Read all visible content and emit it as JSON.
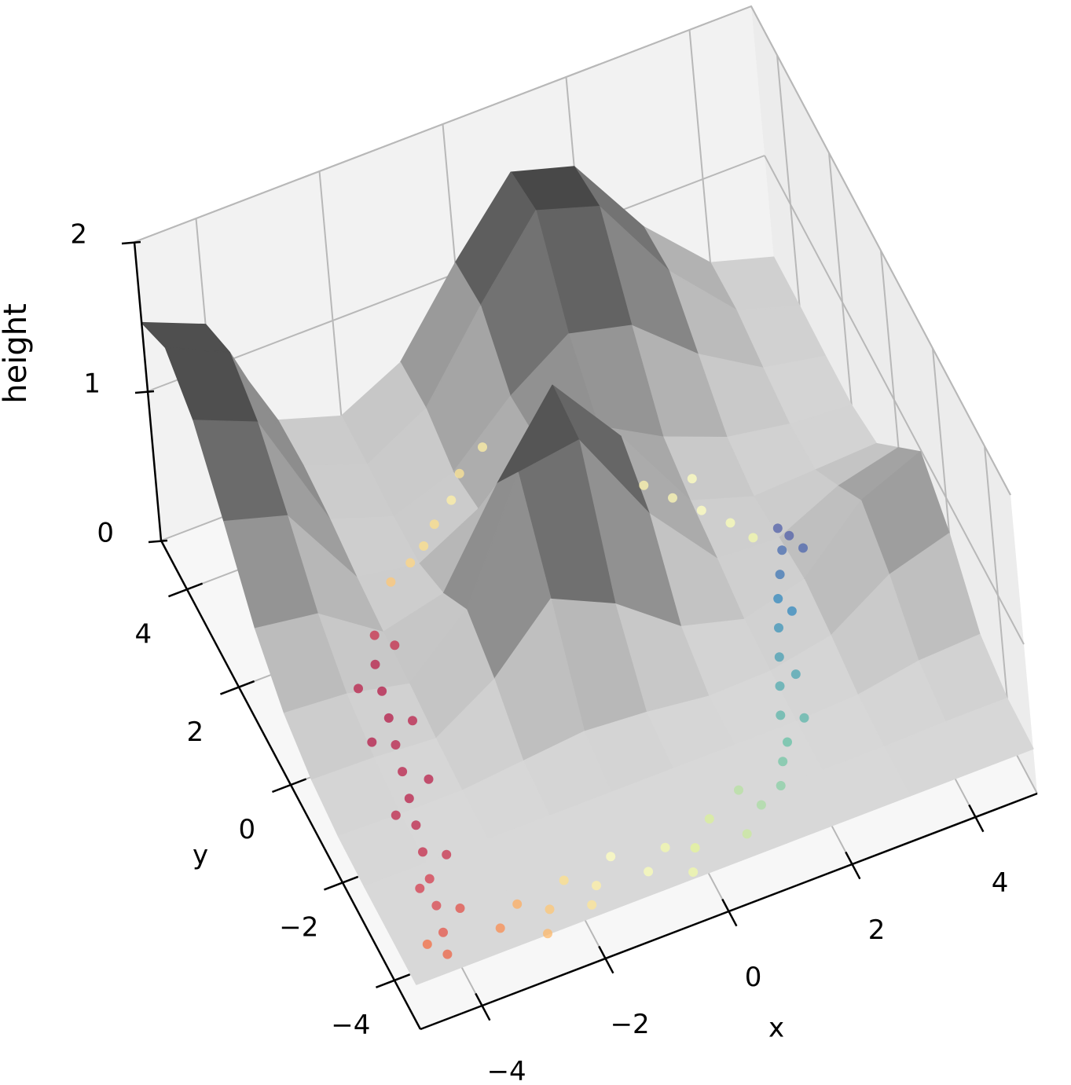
{
  "chart_data": {
    "type": "surface3d",
    "xlabel": "x",
    "ylabel": "y",
    "zlabel": "height",
    "xlim": [
      -5,
      5
    ],
    "ylim": [
      -5,
      5
    ],
    "zlim": [
      0,
      2
    ],
    "xticks": [
      {
        "value": -4,
        "label": "−4"
      },
      {
        "value": -2,
        "label": "−2"
      },
      0,
      2,
      4
    ],
    "yticks": [
      {
        "value": -4,
        "label": "−4"
      },
      {
        "value": -2,
        "label": "−2"
      },
      0,
      2,
      4
    ],
    "zticks": [
      0,
      1,
      2
    ],
    "grid": true,
    "surface": {
      "colormap": "Greys",
      "x": [
        -5,
        -4,
        -3,
        -2,
        -1,
        0,
        1,
        2,
        3,
        4,
        5
      ],
      "y": [
        -5,
        -4,
        -3,
        -2,
        -1,
        0,
        1,
        2,
        3,
        4,
        5
      ],
      "z": [
        [
          0.3,
          0.3,
          0.3,
          0.3,
          0.3,
          0.3,
          0.3,
          0.3,
          0.3,
          0.3,
          0.3
        ],
        [
          0.3,
          0.3,
          0.3,
          0.3,
          0.3,
          0.3,
          0.3,
          0.3,
          0.3,
          0.31,
          0.31
        ],
        [
          0.3,
          0.3,
          0.3,
          0.3,
          0.3,
          0.3,
          0.3,
          0.3,
          0.32,
          0.39,
          0.41
        ],
        [
          0.31,
          0.3,
          0.3,
          0.34,
          0.38,
          0.35,
          0.3,
          0.31,
          0.39,
          0.64,
          0.76
        ],
        [
          0.36,
          0.35,
          0.32,
          0.56,
          0.94,
          0.75,
          0.44,
          0.33,
          0.44,
          0.81,
          0.98
        ],
        [
          0.48,
          0.45,
          0.36,
          0.7,
          1.46,
          1.52,
          0.87,
          0.41,
          0.39,
          0.58,
          0.68
        ],
        [
          0.72,
          0.66,
          0.38,
          0.48,
          1.06,
          1.56,
          1.06,
          0.47,
          0.34,
          0.36,
          0.38
        ],
        [
          1.11,
          0.99,
          0.42,
          0.35,
          0.56,
          0.88,
          0.8,
          0.57,
          0.41,
          0.34,
          0.31
        ],
        [
          1.46,
          1.29,
          0.48,
          0.34,
          0.48,
          0.83,
          1.09,
          0.99,
          0.64,
          0.39,
          0.31
        ],
        [
          1.62,
          1.43,
          0.51,
          0.36,
          0.58,
          1.11,
          1.59,
          1.46,
          0.87,
          0.45,
          0.32
        ],
        [
          1.46,
          1.29,
          0.49,
          0.36,
          0.56,
          1.07,
          1.52,
          1.4,
          0.84,
          0.44,
          0.32
        ]
      ]
    },
    "samples": {
      "colormap": "Spectral",
      "x": [
        -0.5,
        -1.2,
        -1.8,
        -0.8,
        -2.2,
        -1.5,
        0.0,
        -2.8,
        -3.0,
        -3.1,
        -3.2,
        -3.3,
        -3.4,
        -3.5,
        -3.6,
        -3.7,
        -3.8,
        -3.9,
        -4.0,
        -4.1,
        -2.6,
        -3.4,
        -2.9,
        -3.6,
        -3.1,
        -3.8,
        -3.4,
        -4.0,
        -3.6,
        -4.3,
        -3.2,
        -2.8,
        -2.4,
        -2.0,
        -1.6,
        -1.2,
        -0.8,
        -0.4,
        0.0,
        0.4,
        0.8,
        1.2,
        -2.6,
        -1.8,
        -0.2,
        1.0,
        1.6,
        1.8,
        2.0,
        2.1,
        2.3,
        2.5,
        2.7,
        2.9,
        3.1,
        3.3,
        3.5,
        3.4,
        3.6,
        2.4,
        2.6,
        3.0,
        2.5,
        2.2,
        2.8,
        1.9,
        2.6,
        3.0
      ],
      "y": [
        4.2,
        3.5,
        3.0,
        3.8,
        2.8,
        3.2,
        4.5,
        2.0,
        1.5,
        1.0,
        0.5,
        0.0,
        -0.5,
        -1.0,
        -1.5,
        -2.0,
        -2.5,
        -3.0,
        -3.5,
        -3.9,
        1.7,
        1.2,
        0.3,
        0.2,
        -0.8,
        -1.2,
        -2.2,
        -2.6,
        -3.2,
        -3.6,
        -3.8,
        -3.5,
        -3.8,
        -3.4,
        -3.7,
        -3.3,
        -3.8,
        -3.5,
        -3.7,
        -3.3,
        -3.8,
        -3.4,
        -4.2,
        -4.0,
        -4.1,
        -3.0,
        -3.2,
        -2.8,
        -2.5,
        -2.0,
        -1.5,
        -1.0,
        -0.5,
        0.0,
        0.4,
        0.8,
        1.0,
        1.2,
        0.7,
        -2.2,
        -1.4,
        -0.3,
        2.0,
        2.4,
        1.6,
        2.8,
        2.6,
        1.2
      ],
      "c": [
        0.42,
        0.4,
        0.38,
        0.45,
        0.35,
        0.4,
        0.45,
        0.08,
        0.05,
        0.04,
        0.04,
        0.05,
        0.05,
        0.05,
        0.06,
        0.07,
        0.1,
        0.12,
        0.15,
        0.18,
        0.07,
        0.05,
        0.05,
        0.04,
        0.05,
        0.06,
        0.08,
        0.1,
        0.14,
        0.2,
        0.25,
        0.3,
        0.35,
        0.4,
        0.45,
        0.5,
        0.52,
        0.55,
        0.6,
        0.62,
        0.65,
        0.7,
        0.32,
        0.42,
        0.56,
        0.68,
        0.75,
        0.78,
        0.8,
        0.82,
        0.84,
        0.86,
        0.88,
        0.9,
        0.93,
        0.95,
        0.97,
        0.97,
        0.96,
        0.82,
        0.85,
        0.9,
        0.5,
        0.48,
        0.52,
        0.47,
        0.5,
        0.55
      ]
    }
  }
}
